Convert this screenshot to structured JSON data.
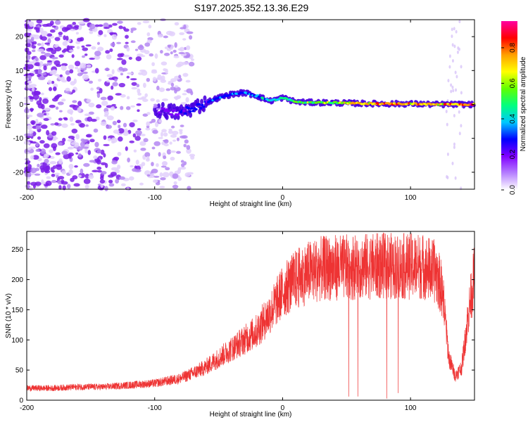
{
  "title": "S197.2025.352.13.36.E29",
  "chart_data": [
    {
      "type": "heatmap",
      "xlabel": "Height of straight line (km)",
      "ylabel": "Frequency (Hz)",
      "xlim": [
        -200,
        150
      ],
      "ylim": [
        -25,
        25
      ],
      "xticks": [
        -200,
        -100,
        0,
        100
      ],
      "yticks": [
        -20,
        -10,
        0,
        10,
        20
      ],
      "colorbar": {
        "label": "Normalized spectral amplitude",
        "range": [
          0,
          0.95
        ],
        "ticks": [
          0.0,
          0.2,
          0.4,
          0.6,
          0.8
        ],
        "tick_labels": [
          "0.0",
          "0.2",
          "0.4",
          "0.6",
          "0.8"
        ],
        "colors": [
          "#ffffff",
          "#b57fff",
          "#8000ff",
          "#0000ff",
          "#00c8ff",
          "#00ff7f",
          "#60ff00",
          "#ffff00",
          "#ffa000",
          "#ff0000",
          "#ff00a0"
        ]
      },
      "trace_description": "Broadband scattered noise for heights below -100 km; a narrow emission line near 0 Hz from about -100 km to 150 km",
      "trace_points": [
        {
          "x": -100,
          "y": -1.5,
          "amp": 0.15
        },
        {
          "x": -90,
          "y": -2.0,
          "amp": 0.2
        },
        {
          "x": -80,
          "y": -2.5,
          "amp": 0.25
        },
        {
          "x": -70,
          "y": -1.0,
          "amp": 0.3
        },
        {
          "x": -60,
          "y": 0.5,
          "amp": 0.3
        },
        {
          "x": -50,
          "y": 2.0,
          "amp": 0.35
        },
        {
          "x": -40,
          "y": 3.0,
          "amp": 0.35
        },
        {
          "x": -30,
          "y": 3.5,
          "amp": 0.35
        },
        {
          "x": -20,
          "y": 2.5,
          "amp": 0.4
        },
        {
          "x": -10,
          "y": 1.0,
          "amp": 0.45
        },
        {
          "x": 0,
          "y": 2.0,
          "amp": 0.5
        },
        {
          "x": 10,
          "y": 0.8,
          "amp": 0.55
        },
        {
          "x": 20,
          "y": 0.6,
          "amp": 0.6
        },
        {
          "x": 40,
          "y": 0.5,
          "amp": 0.65
        },
        {
          "x": 60,
          "y": 0.3,
          "amp": 0.8
        },
        {
          "x": 80,
          "y": 0.2,
          "amp": 0.85
        },
        {
          "x": 100,
          "y": 0.2,
          "amp": 0.8
        },
        {
          "x": 120,
          "y": 0.0,
          "amp": 0.75
        },
        {
          "x": 140,
          "y": 0.0,
          "amp": 0.9
        },
        {
          "x": 150,
          "y": 0.0,
          "amp": 0.9
        }
      ]
    },
    {
      "type": "line",
      "xlabel": "Height of straight line (km)",
      "ylabel": "SNR (10 * v/v)",
      "xlim": [
        -200,
        150
      ],
      "ylim": [
        0,
        280
      ],
      "xticks": [
        -200,
        -100,
        0,
        100
      ],
      "yticks": [
        0,
        50,
        100,
        150,
        200,
        250
      ],
      "grid": false,
      "series": [
        {
          "name": "SNR",
          "color": "#ee3333",
          "x": [
            -200,
            -180,
            -160,
            -140,
            -120,
            -100,
            -90,
            -80,
            -70,
            -60,
            -50,
            -40,
            -30,
            -20,
            -10,
            0,
            10,
            20,
            30,
            40,
            50,
            60,
            70,
            80,
            90,
            100,
            110,
            120,
            125,
            130,
            135,
            140,
            145,
            150
          ],
          "values": [
            20,
            20,
            22,
            22,
            25,
            28,
            32,
            36,
            45,
            55,
            70,
            85,
            100,
            115,
            145,
            180,
            200,
            212,
            218,
            220,
            220,
            222,
            222,
            223,
            222,
            222,
            222,
            212,
            180,
            70,
            40,
            55,
            140,
            210
          ]
        }
      ]
    }
  ]
}
